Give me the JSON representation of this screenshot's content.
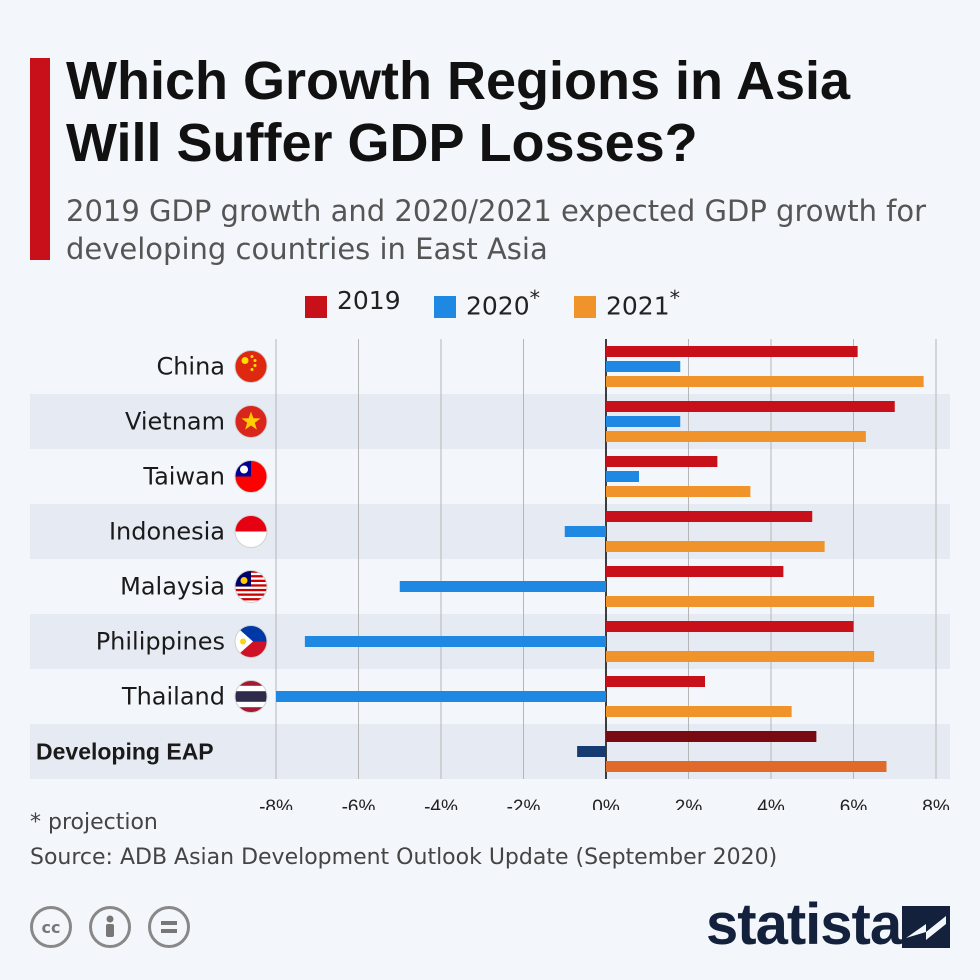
{
  "title": "Which Growth Regions in Asia Will Suffer GDP Losses?",
  "subtitle": "2019 GDP growth and 2020/2021 expected GDP growth for developing countries in East Asia",
  "legend": [
    {
      "label": "2019",
      "sup": "",
      "color": "#c8101a"
    },
    {
      "label": "2020",
      "sup": "*",
      "color": "#1f88e3"
    },
    {
      "label": "2021",
      "sup": "*",
      "color": "#f0932a"
    }
  ],
  "chart_data": {
    "type": "bar",
    "orientation": "horizontal",
    "categories": [
      "China",
      "Vietnam",
      "Taiwan",
      "Indonesia",
      "Malaysia",
      "Philippines",
      "Thailand",
      "Developing EAP"
    ],
    "series": [
      {
        "name": "2019",
        "values": [
          6.1,
          7.0,
          2.7,
          5.0,
          4.3,
          6.0,
          2.4,
          5.1
        ]
      },
      {
        "name": "2020*",
        "values": [
          1.8,
          1.8,
          0.8,
          -1.0,
          -5.0,
          -7.3,
          -8.0,
          -0.7
        ]
      },
      {
        "name": "2021*",
        "values": [
          7.7,
          6.3,
          3.5,
          5.3,
          6.5,
          6.5,
          4.5,
          6.8
        ]
      }
    ],
    "highlight_colors": {
      "2019": "#7a0a12",
      "2020*": "#163b73",
      "2021*": "#e06a2a"
    },
    "xlim": [
      -8,
      8
    ],
    "xticks": [
      "-8%",
      "-6%",
      "-4%",
      "-2%",
      "0%",
      "2%",
      "4%",
      "6%",
      "8%"
    ],
    "grid": true,
    "legend_position": "top"
  },
  "flags": [
    "china-flag-icon",
    "vietnam-flag-icon",
    "taiwan-flag-icon",
    "indonesia-flag-icon",
    "malaysia-flag-icon",
    "philippines-flag-icon",
    "thailand-flag-icon"
  ],
  "footer": {
    "note": "* projection",
    "source": "Source: ADB Asian Development Outlook Update (September 2020)",
    "brand": "statista",
    "license_icons": [
      "cc-icon",
      "attribution-icon",
      "no-derivatives-icon"
    ]
  }
}
